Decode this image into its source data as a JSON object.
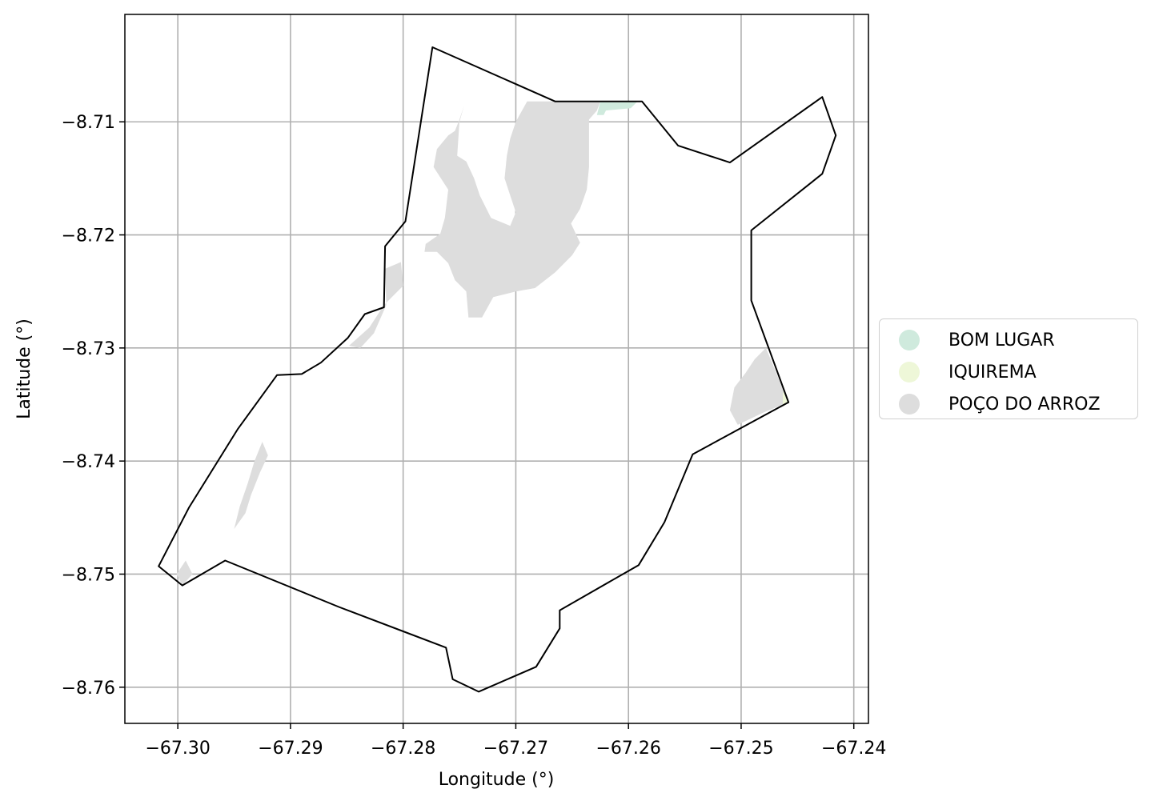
{
  "chart_data": {
    "type": "map",
    "xlabel": "Longitude (°)",
    "ylabel": "Latitude (°)",
    "xlim": [
      -67.3047,
      -67.2387
    ],
    "ylim": [
      -8.7632,
      -8.7005
    ],
    "xticks": [
      -67.3,
      -67.29,
      -67.28,
      -67.27,
      -67.26,
      -67.25,
      -67.24
    ],
    "xtick_labels": [
      "−67.30",
      "−67.29",
      "−67.28",
      "−67.27",
      "−67.26",
      "−67.25",
      "−67.24"
    ],
    "yticks": [
      -8.71,
      -8.72,
      -8.73,
      -8.74,
      -8.75,
      -8.76
    ],
    "ytick_labels": [
      "−8.71",
      "−8.72",
      "−8.73",
      "−8.74",
      "−8.75",
      "−8.76"
    ],
    "grid": true,
    "legend_position": "right",
    "legend": [
      {
        "label": "BOM LUGAR",
        "color": "#cfeadd"
      },
      {
        "label": "IQUIREMA",
        "color": "#eef7d8"
      },
      {
        "label": "POÇO DO ARROZ",
        "color": "#dddddd"
      }
    ],
    "boundary": [
      [
        -67.2774,
        -8.7034
      ],
      [
        -67.2665,
        -8.7082
      ],
      [
        -67.2588,
        -8.7082
      ],
      [
        -67.2556,
        -8.7121
      ],
      [
        -67.251,
        -8.7136
      ],
      [
        -67.2428,
        -8.7078
      ],
      [
        -67.2416,
        -8.7112
      ],
      [
        -67.2428,
        -8.7146
      ],
      [
        -67.2491,
        -8.7196
      ],
      [
        -67.2491,
        -8.7258
      ],
      [
        -67.2458,
        -8.7348
      ],
      [
        -67.2543,
        -8.7394
      ],
      [
        -67.2568,
        -8.7454
      ],
      [
        -67.2591,
        -8.7492
      ],
      [
        -67.2661,
        -8.7532
      ],
      [
        -67.2661,
        -8.7548
      ],
      [
        -67.2682,
        -8.7582
      ],
      [
        -67.2733,
        -8.7604
      ],
      [
        -67.2756,
        -8.7593
      ],
      [
        -67.2762,
        -8.7565
      ],
      [
        -67.2857,
        -8.7529
      ],
      [
        -67.2958,
        -8.7488
      ],
      [
        -67.2996,
        -8.751
      ],
      [
        -67.3017,
        -8.7493
      ],
      [
        -67.299,
        -8.7441
      ],
      [
        -67.2947,
        -8.7372
      ],
      [
        -67.2912,
        -8.7324
      ],
      [
        -67.289,
        -8.7323
      ],
      [
        -67.2873,
        -8.7313
      ],
      [
        -67.2849,
        -8.7291
      ],
      [
        -67.2834,
        -8.727
      ],
      [
        -67.2817,
        -8.7264
      ],
      [
        -67.2816,
        -8.721
      ],
      [
        -67.2798,
        -8.7188
      ],
      [
        -67.2774,
        -8.7034
      ]
    ],
    "regions": [
      {
        "name": "POÇO DO ARROZ",
        "part": "central",
        "polygon": [
          [
            -67.269,
            -8.7082
          ],
          [
            -67.2625,
            -8.7082
          ],
          [
            -67.2628,
            -8.709
          ],
          [
            -67.2635,
            -8.7098
          ],
          [
            -67.2635,
            -8.714
          ],
          [
            -67.2637,
            -8.716
          ],
          [
            -67.2643,
            -8.7177
          ],
          [
            -67.2651,
            -8.719
          ],
          [
            -67.2643,
            -8.7207
          ],
          [
            -67.265,
            -8.7218
          ],
          [
            -67.2665,
            -8.7233
          ],
          [
            -67.2683,
            -8.7247
          ],
          [
            -67.27,
            -8.725
          ],
          [
            -67.272,
            -8.7255
          ],
          [
            -67.273,
            -8.7273
          ],
          [
            -67.2742,
            -8.7273
          ],
          [
            -67.2744,
            -8.725
          ],
          [
            -67.2754,
            -8.724
          ],
          [
            -67.276,
            -8.7225
          ],
          [
            -67.277,
            -8.7215
          ],
          [
            -67.2781,
            -8.7215
          ],
          [
            -67.278,
            -8.7208
          ],
          [
            -67.2767,
            -8.7199
          ],
          [
            -67.2763,
            -8.7185
          ],
          [
            -67.276,
            -8.716
          ],
          [
            -67.2773,
            -8.714
          ],
          [
            -67.277,
            -8.7124
          ],
          [
            -67.276,
            -8.7112
          ],
          [
            -67.2754,
            -8.7108
          ],
          [
            -67.275,
            -8.7098
          ],
          [
            -67.2746,
            -8.7086
          ],
          [
            -67.275,
            -8.71
          ],
          [
            -67.2752,
            -8.713
          ],
          [
            -67.2744,
            -8.7135
          ],
          [
            -67.2737,
            -8.715
          ],
          [
            -67.2732,
            -8.7165
          ],
          [
            -67.2722,
            -8.7185
          ],
          [
            -67.2705,
            -8.7192
          ],
          [
            -67.27,
            -8.718
          ],
          [
            -67.2705,
            -8.7165
          ],
          [
            -67.271,
            -8.715
          ],
          [
            -67.2708,
            -8.713
          ],
          [
            -67.2705,
            -8.7115
          ],
          [
            -67.27,
            -8.71
          ],
          [
            -67.269,
            -8.7082
          ]
        ]
      },
      {
        "name": "POÇO DO ARROZ",
        "part": "west-strip",
        "polygon": [
          [
            -67.2802,
            -8.7224
          ],
          [
            -67.28,
            -8.7245
          ],
          [
            -67.281,
            -8.7255
          ],
          [
            -67.2817,
            -8.7262
          ],
          [
            -67.283,
            -8.7282
          ],
          [
            -67.2848,
            -8.7298
          ],
          [
            -67.2838,
            -8.73
          ],
          [
            -67.2826,
            -8.7287
          ],
          [
            -67.2815,
            -8.7262
          ],
          [
            -67.2816,
            -8.723
          ],
          [
            -67.2802,
            -8.7224
          ]
        ]
      },
      {
        "name": "POÇO DO ARROZ",
        "part": "southwest",
        "polygon": [
          [
            -67.2925,
            -8.7383
          ],
          [
            -67.292,
            -8.7395
          ],
          [
            -67.2927,
            -8.741
          ],
          [
            -67.2935,
            -8.743
          ],
          [
            -67.294,
            -8.7446
          ],
          [
            -67.295,
            -8.746
          ],
          [
            -67.2945,
            -8.744
          ],
          [
            -67.2938,
            -8.742
          ],
          [
            -67.2932,
            -8.74
          ],
          [
            -67.2925,
            -8.7383
          ]
        ]
      },
      {
        "name": "POÇO DO ARROZ",
        "part": "southwest-tip",
        "polygon": [
          [
            -67.2993,
            -8.7488
          ],
          [
            -67.2987,
            -8.75
          ],
          [
            -67.2996,
            -8.751
          ],
          [
            -67.3001,
            -8.75
          ],
          [
            -67.2993,
            -8.7488
          ]
        ]
      },
      {
        "name": "POÇO DO ARROZ",
        "part": "east",
        "polygon": [
          [
            -67.2478,
            -8.73
          ],
          [
            -67.2458,
            -8.7348
          ],
          [
            -67.248,
            -8.7357
          ],
          [
            -67.2503,
            -8.7368
          ],
          [
            -67.251,
            -8.7355
          ],
          [
            -67.2506,
            -8.7335
          ],
          [
            -67.2496,
            -8.7322
          ],
          [
            -67.2488,
            -8.731
          ],
          [
            -67.2478,
            -8.73
          ]
        ]
      },
      {
        "name": "BOM LUGAR",
        "part": "north",
        "polygon": [
          [
            -67.2625,
            -8.7082
          ],
          [
            -67.2592,
            -8.7082
          ],
          [
            -67.2598,
            -8.7088
          ],
          [
            -67.262,
            -8.709
          ],
          [
            -67.2622,
            -8.7094
          ],
          [
            -67.2628,
            -8.7094
          ],
          [
            -67.2625,
            -8.7082
          ]
        ]
      },
      {
        "name": "IQUIREMA",
        "part": "east-edge",
        "polygon": [
          [
            -67.2463,
            -8.7338
          ],
          [
            -67.2458,
            -8.7348
          ],
          [
            -67.2463,
            -8.7352
          ],
          [
            -67.2463,
            -8.7338
          ]
        ]
      }
    ]
  }
}
